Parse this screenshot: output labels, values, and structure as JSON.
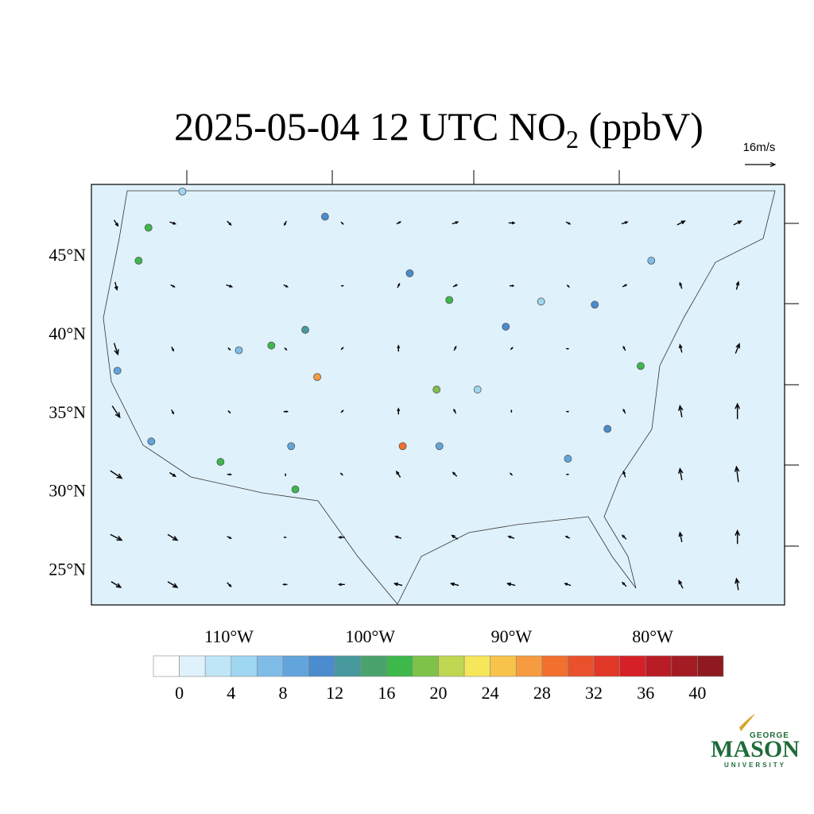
{
  "title": {
    "text": "2025-05-04 12 UTC NO",
    "subscript": "2",
    "suffix": " (ppbV)"
  },
  "map": {
    "lon_range": [
      -119.74,
      -70.66
    ],
    "lat_range": [
      22.7,
      49.45
    ],
    "lat_ticks": [
      {
        "value": 45,
        "label": "45°N"
      },
      {
        "value": 40,
        "label": "40°N"
      },
      {
        "value": 35,
        "label": "35°N"
      },
      {
        "value": 30,
        "label": "30°N"
      },
      {
        "value": 25,
        "label": "25°N"
      }
    ],
    "lon_ticks": [
      {
        "value": -110,
        "label": "110°W"
      },
      {
        "value": -100,
        "label": "100°W"
      },
      {
        "value": -90,
        "label": "90°W"
      },
      {
        "value": -80,
        "label": "80°W"
      }
    ],
    "ref_vector": {
      "value": 16,
      "label": "16m/s"
    },
    "wind": {
      "lats": [
        47,
        43,
        39,
        35,
        31,
        27,
        24
      ],
      "lons": [
        -118,
        -114,
        -110,
        -106,
        -102,
        -98,
        -94,
        -90,
        -86,
        -82,
        -78,
        -74
      ],
      "u": [
        [
          2,
          3,
          2,
          -1,
          1,
          2,
          3,
          3,
          2,
          3,
          4,
          4
        ],
        [
          1,
          2,
          3,
          2,
          1,
          1,
          2,
          2,
          1,
          2,
          -1,
          1
        ],
        [
          2,
          1,
          1,
          1,
          1,
          0,
          1,
          1,
          -1,
          -1,
          -1,
          2
        ],
        [
          4,
          1,
          1,
          2,
          1,
          0,
          -1,
          0,
          -1,
          -1,
          -1,
          0
        ],
        [
          6,
          3,
          2,
          0,
          -1,
          -2,
          -2,
          -1,
          -1,
          -1,
          -1,
          -1
        ],
        [
          6,
          5,
          2,
          -1,
          -3,
          -3,
          -3,
          -3,
          -2,
          -2,
          -1,
          0
        ],
        [
          5,
          5,
          2,
          -2,
          -3,
          -4,
          -4,
          -4,
          -3,
          -2,
          -2,
          -1
        ]
      ],
      "v": [
        [
          -3,
          -1,
          -2,
          -2,
          -1,
          1,
          1,
          0,
          -1,
          1,
          2,
          2
        ],
        [
          -4,
          -1,
          -1,
          -1,
          0,
          2,
          1,
          0,
          -1,
          1,
          3,
          4
        ],
        [
          -6,
          -2,
          -1,
          -1,
          1,
          3,
          2,
          1,
          0,
          2,
          4,
          5
        ],
        [
          -6,
          -2,
          -1,
          0,
          1,
          3,
          2,
          1,
          0,
          2,
          6,
          8
        ],
        [
          -4,
          -2,
          0,
          -1,
          1,
          3,
          2,
          1,
          0,
          3,
          6,
          8
        ],
        [
          -3,
          -3,
          -1,
          0,
          0,
          1,
          2,
          1,
          1,
          2,
          5,
          7
        ],
        [
          -3,
          -3,
          -2,
          0,
          0,
          1,
          1,
          1,
          1,
          2,
          4,
          6
        ]
      ]
    },
    "stations": [
      {
        "lon": -103.75,
        "lat": 37.2,
        "value": 26
      },
      {
        "lon": -97.7,
        "lat": 32.8,
        "value": 28
      },
      {
        "lon": -95.3,
        "lat": 36.4,
        "value": 18
      },
      {
        "lon": -107.0,
        "lat": 39.2,
        "value": 16
      },
      {
        "lon": -110.6,
        "lat": 31.8,
        "value": 17
      },
      {
        "lon": -105.3,
        "lat": 30.05,
        "value": 16
      },
      {
        "lon": -115.7,
        "lat": 46.7,
        "value": 16
      },
      {
        "lon": -116.4,
        "lat": 44.6,
        "value": 16
      },
      {
        "lon": -94.4,
        "lat": 42.1,
        "value": 16
      },
      {
        "lon": -80.85,
        "lat": 37.9,
        "value": 16
      },
      {
        "lon": -104.6,
        "lat": 40.2,
        "value": 12
      },
      {
        "lon": -103.2,
        "lat": 47.4,
        "value": 11
      },
      {
        "lon": -97.2,
        "lat": 43.8,
        "value": 11
      },
      {
        "lon": -90.4,
        "lat": 40.4,
        "value": 10
      },
      {
        "lon": -84.1,
        "lat": 41.8,
        "value": 10
      },
      {
        "lon": -83.2,
        "lat": 33.9,
        "value": 10
      },
      {
        "lon": -86.0,
        "lat": 32.0,
        "value": 9
      },
      {
        "lon": -95.1,
        "lat": 32.8,
        "value": 9
      },
      {
        "lon": -117.9,
        "lat": 37.6,
        "value": 8
      },
      {
        "lon": -105.6,
        "lat": 32.8,
        "value": 9
      },
      {
        "lon": -115.5,
        "lat": 33.1,
        "value": 9
      },
      {
        "lon": -109.3,
        "lat": 38.9,
        "value": 6
      },
      {
        "lon": -80.1,
        "lat": 44.6,
        "value": 6
      },
      {
        "lon": -87.9,
        "lat": 42.0,
        "value": 5
      },
      {
        "lon": -113.3,
        "lat": 49.0,
        "value": 4
      },
      {
        "lon": -92.4,
        "lat": 36.4,
        "value": 4
      }
    ]
  },
  "colorbar": {
    "range": [
      -2,
      42
    ],
    "ticks": [
      0,
      4,
      8,
      12,
      16,
      20,
      24,
      28,
      32,
      36,
      40
    ],
    "colors": [
      "#ffffff",
      "#dff1fa",
      "#bfe6f6",
      "#9fd6f2",
      "#7fbde8",
      "#62a5dc",
      "#4a8ccd",
      "#48999d",
      "#4aa36c",
      "#3db84b",
      "#7ec24a",
      "#bfd651",
      "#f6e65a",
      "#f7c34a",
      "#f69b3f",
      "#f2702e",
      "#e9502c",
      "#e13728",
      "#d52027",
      "#b91c25",
      "#a51b23",
      "#8e1a1f"
    ]
  },
  "logo": {
    "top": "GEORGE",
    "main": "MASON",
    "bottom": "UNIVERSITY"
  }
}
